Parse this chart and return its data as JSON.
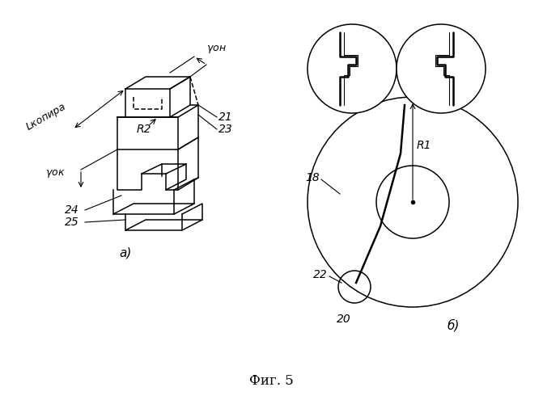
{
  "title": "Фиг. 5",
  "bg_color": "#ffffff",
  "line_color": "#000000",
  "fig_width": 6.71,
  "fig_height": 5.0,
  "label_a": "а)",
  "label_b": "б)",
  "labels_left": {
    "L_kopira": "L копира",
    "gamma_on": "γ он",
    "gamma_ok": "γ ок",
    "R2": "R2",
    "n21": "21",
    "n23": "23",
    "n24": "24",
    "n25": "25"
  },
  "labels_right": {
    "R1": "R1",
    "n18": "18",
    "n20": "20",
    "n22": "22"
  }
}
